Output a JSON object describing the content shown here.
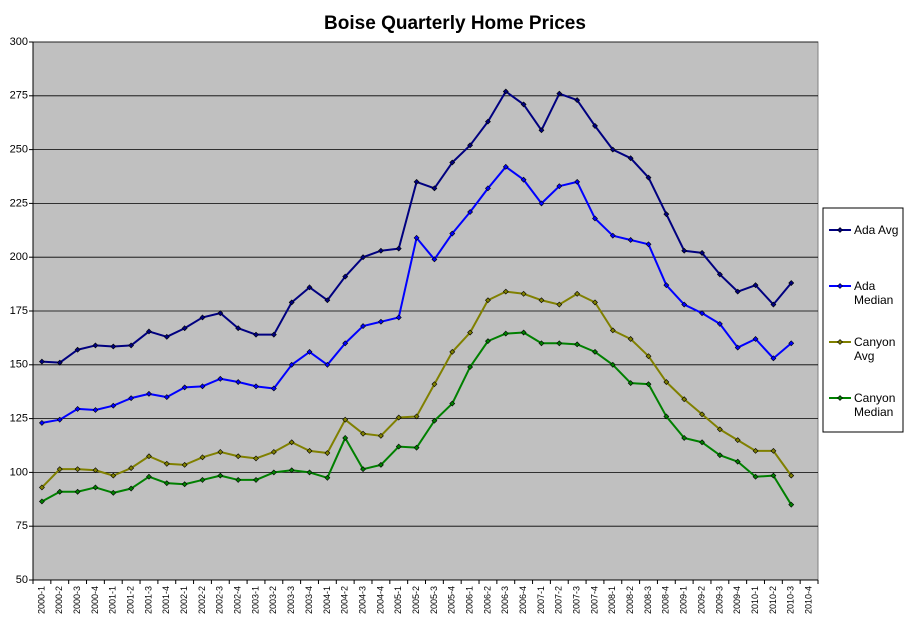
{
  "chart_data": {
    "type": "line",
    "title": "Boise Quarterly Home Prices",
    "categories": [
      "2000-1",
      "2000-2",
      "2000-3",
      "2000-4",
      "2001-1",
      "2001-2",
      "2001-3",
      "2001-4",
      "2002-1",
      "2002-2",
      "2002-3",
      "2002-4",
      "2003-1",
      "2003-2",
      "2003-3",
      "2003-4",
      "2004-1",
      "2004-2",
      "2004-3",
      "2004-4",
      "2005-1",
      "2005-2",
      "2005-3",
      "2005-4",
      "2006-1",
      "2006-2",
      "2006-3",
      "2006-4",
      "2007-1",
      "2007-2",
      "2007-3",
      "2007-4",
      "2008-1",
      "2008-2",
      "2008-3",
      "2008-4",
      "2009-1",
      "2009-2",
      "2009-3",
      "2009-4",
      "2010-1",
      "2010-2",
      "2010-3",
      "2010-4"
    ],
    "series": [
      {
        "name": "Ada Avg",
        "color": "#000080",
        "values": [
          151.5,
          151,
          157,
          159,
          158.5,
          159,
          165.5,
          163,
          167,
          172,
          174,
          167,
          164,
          164,
          179,
          186,
          180,
          191,
          200,
          203,
          204,
          235,
          232,
          244,
          252,
          263,
          277,
          271,
          259,
          276,
          273,
          261,
          250,
          246,
          237,
          220,
          203,
          202,
          192,
          184,
          187,
          178,
          188,
          null
        ]
      },
      {
        "name": "Ada Median",
        "color": "#0000ff",
        "values": [
          123,
          124.5,
          129.5,
          129,
          131,
          134.5,
          136.5,
          135,
          139.5,
          140,
          143.5,
          142,
          140,
          139,
          150,
          156,
          150,
          160,
          168,
          170,
          172,
          209,
          199,
          211,
          221,
          232,
          242,
          236,
          225,
          233,
          235,
          218,
          210,
          208,
          206,
          187,
          178,
          174,
          169,
          158,
          162,
          153,
          160,
          null
        ]
      },
      {
        "name": "Canyon Avg",
        "color": "#808000",
        "values": [
          93,
          101.5,
          101.5,
          101,
          98.5,
          102,
          107.5,
          104,
          103.5,
          107,
          109.5,
          107.5,
          106.5,
          109.5,
          114,
          110,
          109,
          124.5,
          118,
          117,
          125.5,
          126,
          141,
          156,
          165,
          180,
          184,
          183,
          180,
          178,
          183,
          179,
          166,
          162,
          154,
          142,
          134,
          127,
          120,
          115,
          110,
          110,
          98.5,
          null
        ]
      },
      {
        "name": "Canyon Median",
        "color": "#008000",
        "values": [
          86.5,
          91,
          91,
          93,
          90.5,
          92.5,
          98,
          95,
          94.5,
          96.5,
          98.5,
          96.5,
          96.5,
          100,
          101,
          100,
          97.5,
          116,
          101.5,
          103.5,
          112,
          111.5,
          124,
          132,
          149,
          161,
          164.5,
          165,
          160,
          160,
          159.5,
          156,
          150,
          141.5,
          141,
          126,
          116,
          114,
          108,
          105,
          98,
          98.5,
          85,
          null
        ]
      }
    ],
    "ylim": [
      50,
      300
    ],
    "yticks": [
      50,
      75,
      100,
      125,
      150,
      175,
      200,
      225,
      250,
      275,
      300
    ],
    "grid": true,
    "legend": "right"
  }
}
